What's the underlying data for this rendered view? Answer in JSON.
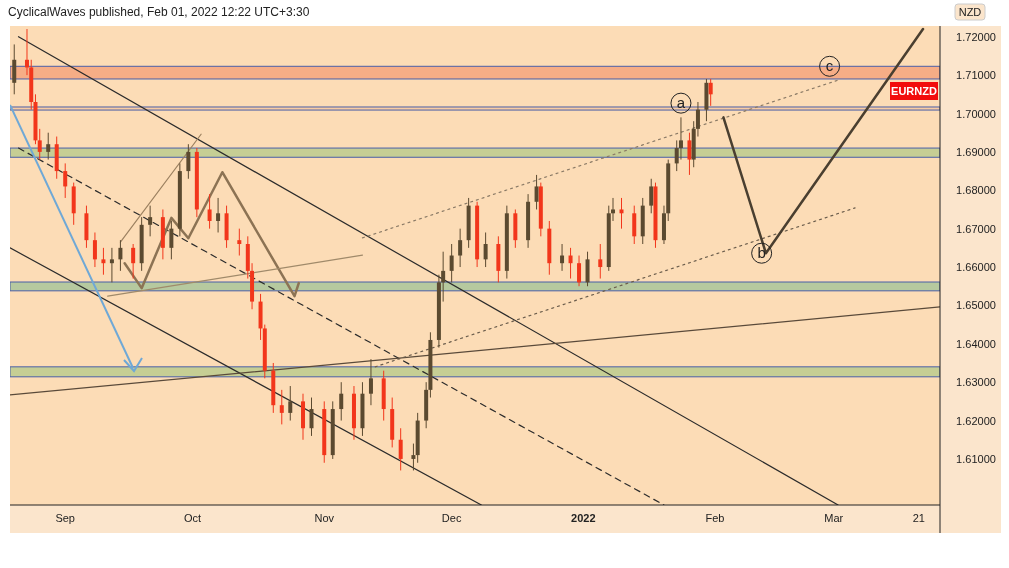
{
  "chart_data": {
    "type": "candlestick",
    "title": "CyclicalWaves published, Feb 01, 2022 12:22 UTC+3:30",
    "ylabel": "NZD",
    "x": [
      "2021-08-20",
      "2021-08-23",
      "2021-08-24",
      "2021-08-25",
      "2021-08-26",
      "2021-08-28",
      "2021-08-30",
      "2021-09-01",
      "2021-09-03",
      "2021-09-06",
      "2021-09-08",
      "2021-09-10",
      "2021-09-12",
      "2021-09-14",
      "2021-09-17",
      "2021-09-19",
      "2021-09-21",
      "2021-09-24",
      "2021-09-26",
      "2021-09-28",
      "2021-09-30",
      "2021-10-02",
      "2021-10-05",
      "2021-10-07",
      "2021-10-09",
      "2021-10-12",
      "2021-10-14",
      "2021-10-15",
      "2021-10-17",
      "2021-10-18",
      "2021-10-20",
      "2021-10-22",
      "2021-10-24",
      "2021-10-27",
      "2021-10-29",
      "2021-11-01",
      "2021-11-03",
      "2021-11-05",
      "2021-11-08",
      "2021-11-10",
      "2021-11-12",
      "2021-11-15",
      "2021-11-17",
      "2021-11-19",
      "2021-11-22",
      "2021-11-23",
      "2021-11-25",
      "2021-11-26",
      "2021-11-28",
      "2021-11-29",
      "2021-12-01",
      "2021-12-03",
      "2021-12-05",
      "2021-12-07",
      "2021-12-09",
      "2021-12-12",
      "2021-12-14",
      "2021-12-16",
      "2021-12-19",
      "2021-12-21",
      "2021-12-22",
      "2021-12-24",
      "2021-12-27",
      "2021-12-29",
      "2021-12-31",
      "2022-01-02",
      "2022-01-05",
      "2022-01-07",
      "2022-01-08",
      "2022-01-10",
      "2022-01-13",
      "2022-01-15",
      "2022-01-17",
      "2022-01-18",
      "2022-01-20",
      "2022-01-21",
      "2022-01-23",
      "2022-01-24",
      "2022-01-26",
      "2022-01-27",
      "2022-01-28",
      "2022-01-30",
      "2022-01-31"
    ],
    "ohlc": [
      [
        1.708,
        1.718,
        1.705,
        1.714
      ],
      [
        1.714,
        1.722,
        1.71,
        1.712
      ],
      [
        1.712,
        1.714,
        1.701,
        1.703
      ],
      [
        1.703,
        1.705,
        1.692,
        1.693
      ],
      [
        1.693,
        1.696,
        1.688,
        1.69
      ],
      [
        1.69,
        1.695,
        1.688,
        1.692
      ],
      [
        1.692,
        1.694,
        1.683,
        1.685
      ],
      [
        1.685,
        1.687,
        1.678,
        1.681
      ],
      [
        1.681,
        1.682,
        1.671,
        1.674
      ],
      [
        1.674,
        1.676,
        1.665,
        1.667
      ],
      [
        1.667,
        1.669,
        1.66,
        1.662
      ],
      [
        1.662,
        1.665,
        1.658,
        1.661
      ],
      [
        1.661,
        1.665,
        1.656,
        1.662
      ],
      [
        1.662,
        1.667,
        1.659,
        1.665
      ],
      [
        1.665,
        1.666,
        1.657,
        1.661
      ],
      [
        1.661,
        1.673,
        1.659,
        1.671
      ],
      [
        1.671,
        1.676,
        1.668,
        1.673
      ],
      [
        1.673,
        1.675,
        1.662,
        1.665
      ],
      [
        1.665,
        1.672,
        1.662,
        1.67
      ],
      [
        1.67,
        1.687,
        1.668,
        1.685
      ],
      [
        1.685,
        1.692,
        1.683,
        1.69
      ],
      [
        1.69,
        1.691,
        1.673,
        1.675
      ],
      [
        1.675,
        1.679,
        1.67,
        1.672
      ],
      [
        1.672,
        1.678,
        1.669,
        1.674
      ],
      [
        1.674,
        1.676,
        1.665,
        1.667
      ],
      [
        1.667,
        1.67,
        1.663,
        1.666
      ],
      [
        1.666,
        1.668,
        1.657,
        1.659
      ],
      [
        1.659,
        1.661,
        1.649,
        1.651
      ],
      [
        1.651,
        1.653,
        1.641,
        1.644
      ],
      [
        1.644,
        1.645,
        1.631,
        1.633
      ],
      [
        1.633,
        1.635,
        1.622,
        1.624
      ],
      [
        1.624,
        1.628,
        1.619,
        1.622
      ],
      [
        1.622,
        1.629,
        1.62,
        1.625
      ],
      [
        1.625,
        1.627,
        1.615,
        1.618
      ],
      [
        1.618,
        1.626,
        1.616,
        1.623
      ],
      [
        1.623,
        1.625,
        1.609,
        1.611
      ],
      [
        1.611,
        1.625,
        1.61,
        1.623
      ],
      [
        1.623,
        1.63,
        1.62,
        1.627
      ],
      [
        1.627,
        1.629,
        1.615,
        1.618
      ],
      [
        1.618,
        1.63,
        1.616,
        1.627
      ],
      [
        1.627,
        1.636,
        1.624,
        1.631
      ],
      [
        1.631,
        1.633,
        1.62,
        1.623
      ],
      [
        1.623,
        1.626,
        1.613,
        1.615
      ],
      [
        1.615,
        1.618,
        1.607,
        1.61
      ],
      [
        1.61,
        1.614,
        1.607,
        1.611
      ],
      [
        1.611,
        1.622,
        1.609,
        1.62
      ],
      [
        1.62,
        1.63,
        1.618,
        1.628
      ],
      [
        1.628,
        1.643,
        1.626,
        1.641
      ],
      [
        1.641,
        1.658,
        1.639,
        1.656
      ],
      [
        1.656,
        1.664,
        1.651,
        1.659
      ],
      [
        1.659,
        1.666,
        1.656,
        1.663
      ],
      [
        1.663,
        1.67,
        1.66,
        1.667
      ],
      [
        1.667,
        1.678,
        1.665,
        1.676
      ],
      [
        1.676,
        1.677,
        1.66,
        1.662
      ],
      [
        1.662,
        1.669,
        1.66,
        1.666
      ],
      [
        1.666,
        1.668,
        1.656,
        1.659
      ],
      [
        1.659,
        1.676,
        1.657,
        1.674
      ],
      [
        1.674,
        1.675,
        1.665,
        1.667
      ],
      [
        1.667,
        1.679,
        1.665,
        1.677
      ],
      [
        1.677,
        1.684,
        1.675,
        1.681
      ],
      [
        1.681,
        1.682,
        1.668,
        1.67
      ],
      [
        1.67,
        1.672,
        1.658,
        1.661
      ],
      [
        1.661,
        1.666,
        1.659,
        1.663
      ],
      [
        1.663,
        1.665,
        1.657,
        1.661
      ],
      [
        1.661,
        1.663,
        1.655,
        1.656
      ],
      [
        1.656,
        1.664,
        1.655,
        1.662
      ],
      [
        1.662,
        1.666,
        1.657,
        1.66
      ],
      [
        1.66,
        1.676,
        1.659,
        1.674
      ],
      [
        1.674,
        1.678,
        1.672,
        1.675
      ],
      [
        1.675,
        1.678,
        1.67,
        1.674
      ],
      [
        1.674,
        1.676,
        1.666,
        1.668
      ],
      [
        1.668,
        1.678,
        1.666,
        1.676
      ],
      [
        1.676,
        1.683,
        1.674,
        1.681
      ],
      [
        1.681,
        1.682,
        1.665,
        1.667
      ],
      [
        1.667,
        1.676,
        1.666,
        1.674
      ],
      [
        1.674,
        1.688,
        1.672,
        1.687
      ],
      [
        1.687,
        1.693,
        1.685,
        1.691
      ],
      [
        1.691,
        1.699,
        1.688,
        1.693
      ],
      [
        1.693,
        1.695,
        1.684,
        1.688
      ],
      [
        1.688,
        1.698,
        1.686,
        1.696
      ],
      [
        1.696,
        1.703,
        1.694,
        1.701
      ],
      [
        1.701,
        1.709,
        1.698,
        1.708
      ],
      [
        1.708,
        1.709,
        1.702,
        1.705
      ]
    ],
    "series": [
      {
        "type": "line",
        "x": [
          "2021-08-21",
          "2022-03-02"
        ],
        "values": [
          1.72,
          1.598
        ],
        "color": "#2b2b2b",
        "line_style": "solid"
      },
      {
        "type": "line",
        "x": [
          "2021-08-21",
          "2022-01-20"
        ],
        "values": [
          1.691,
          1.598
        ],
        "color": "#2b2b2b",
        "line_style": "dashed"
      },
      {
        "type": "line",
        "x": [
          "2021-08-19",
          "2021-12-08"
        ],
        "values": [
          1.665,
          1.598
        ],
        "color": "#2b2b2b",
        "line_style": "solid"
      },
      {
        "type": "line",
        "x": [
          "2021-08-19",
          "2022-03-26"
        ],
        "values": [
          1.6267,
          1.6496
        ],
        "color": "#5a4a3a",
        "line_style": "solid"
      },
      {
        "type": "line",
        "x": [
          "2021-11-10",
          "2022-03-02"
        ],
        "values": [
          1.6676,
          1.7087
        ],
        "color": "#8a7a66",
        "line_style": "dotted"
      },
      {
        "type": "line",
        "x": [
          "2021-11-13",
          "2022-03-06"
        ],
        "values": [
          1.634,
          1.6754
        ],
        "color": "#6b5d4c",
        "line_style": "dotted"
      },
      {
        "type": "line",
        "x": [
          "2021-09-14",
          "2021-10-03"
        ],
        "values": [
          1.6665,
          1.6946
        ],
        "color": "#9c8160",
        "line_style": "solid"
      },
      {
        "type": "line",
        "x": [
          "2021-09-15",
          "2021-09-19",
          "2021-09-26",
          "2021-09-30",
          "2021-10-08",
          "2021-10-25",
          "2021-10-26"
        ],
        "values": [
          1.661,
          1.6545,
          1.6728,
          1.6675,
          1.6847,
          1.6524,
          1.6558
        ],
        "color": "#8c7354",
        "line_style": "solid"
      },
      {
        "type": "line",
        "x": [
          "2021-09-11",
          "2021-11-10"
        ],
        "values": [
          1.6524,
          1.6631
        ],
        "color": "#a08a6a",
        "line_style": "solid"
      },
      {
        "type": "line",
        "x": [
          "2022-02-03",
          "2022-02-13",
          "2022-03-22"
        ],
        "values": [
          1.699,
          1.6636,
          1.722
        ],
        "color": "#4a3f30",
        "line_style": "solid"
      }
    ],
    "bands": [
      {
        "axis": "y",
        "from": 1.709,
        "to": 1.7123,
        "color": "#f5a57e"
      },
      {
        "axis": "y",
        "from": 1.7009,
        "to": 1.7017,
        "color": "#f7c9a0"
      },
      {
        "axis": "y",
        "from": 1.6886,
        "to": 1.691,
        "color": "#bccb8e"
      },
      {
        "axis": "y",
        "from": 1.6538,
        "to": 1.6561,
        "color": "#a9c59b"
      },
      {
        "axis": "y",
        "from": 1.6314,
        "to": 1.634,
        "color": "#bccb8e"
      }
    ],
    "annotations": [
      {
        "text": "a",
        "x": "2022-01-24",
        "y": 1.7027
      },
      {
        "text": "b",
        "x": "2022-02-12",
        "y": 1.6636
      },
      {
        "text": "c",
        "x": "2022-02-28",
        "y": 1.7123
      },
      "EURNZD"
    ],
    "xlim": [
      "2021-08-19",
      "2022-03-26"
    ],
    "xticks": [
      {
        "value": "2021-09-01",
        "label": "Sep"
      },
      {
        "value": "2021-10-01",
        "label": "Oct"
      },
      {
        "value": "2021-11-01",
        "label": "Nov"
      },
      {
        "value": "2021-12-01",
        "label": "Dec"
      },
      {
        "value": "2022-01-01",
        "label": "2022"
      },
      {
        "value": "2022-02-01",
        "label": "Feb"
      },
      {
        "value": "2022-03-01",
        "label": "Mar"
      },
      {
        "value": "2022-03-21",
        "label": "21"
      }
    ],
    "ylim": [
      1.598,
      1.7228
    ],
    "yticks": [
      {
        "value": 1.61,
        "label": "1.61000"
      },
      {
        "value": 1.62,
        "label": "1.62000"
      },
      {
        "value": 1.63,
        "label": "1.63000"
      },
      {
        "value": 1.64,
        "label": "1.64000"
      },
      {
        "value": 1.65,
        "label": "1.65000"
      },
      {
        "value": 1.66,
        "label": "1.66000"
      },
      {
        "value": 1.67,
        "label": "1.67000"
      },
      {
        "value": 1.68,
        "label": "1.68000"
      },
      {
        "value": 1.69,
        "label": "1.69000"
      },
      {
        "value": 1.7,
        "label": "1.70000"
      },
      {
        "value": 1.71,
        "label": "1.71000"
      },
      {
        "value": 1.72,
        "label": "1.72000"
      }
    ],
    "grid": false
  }
}
